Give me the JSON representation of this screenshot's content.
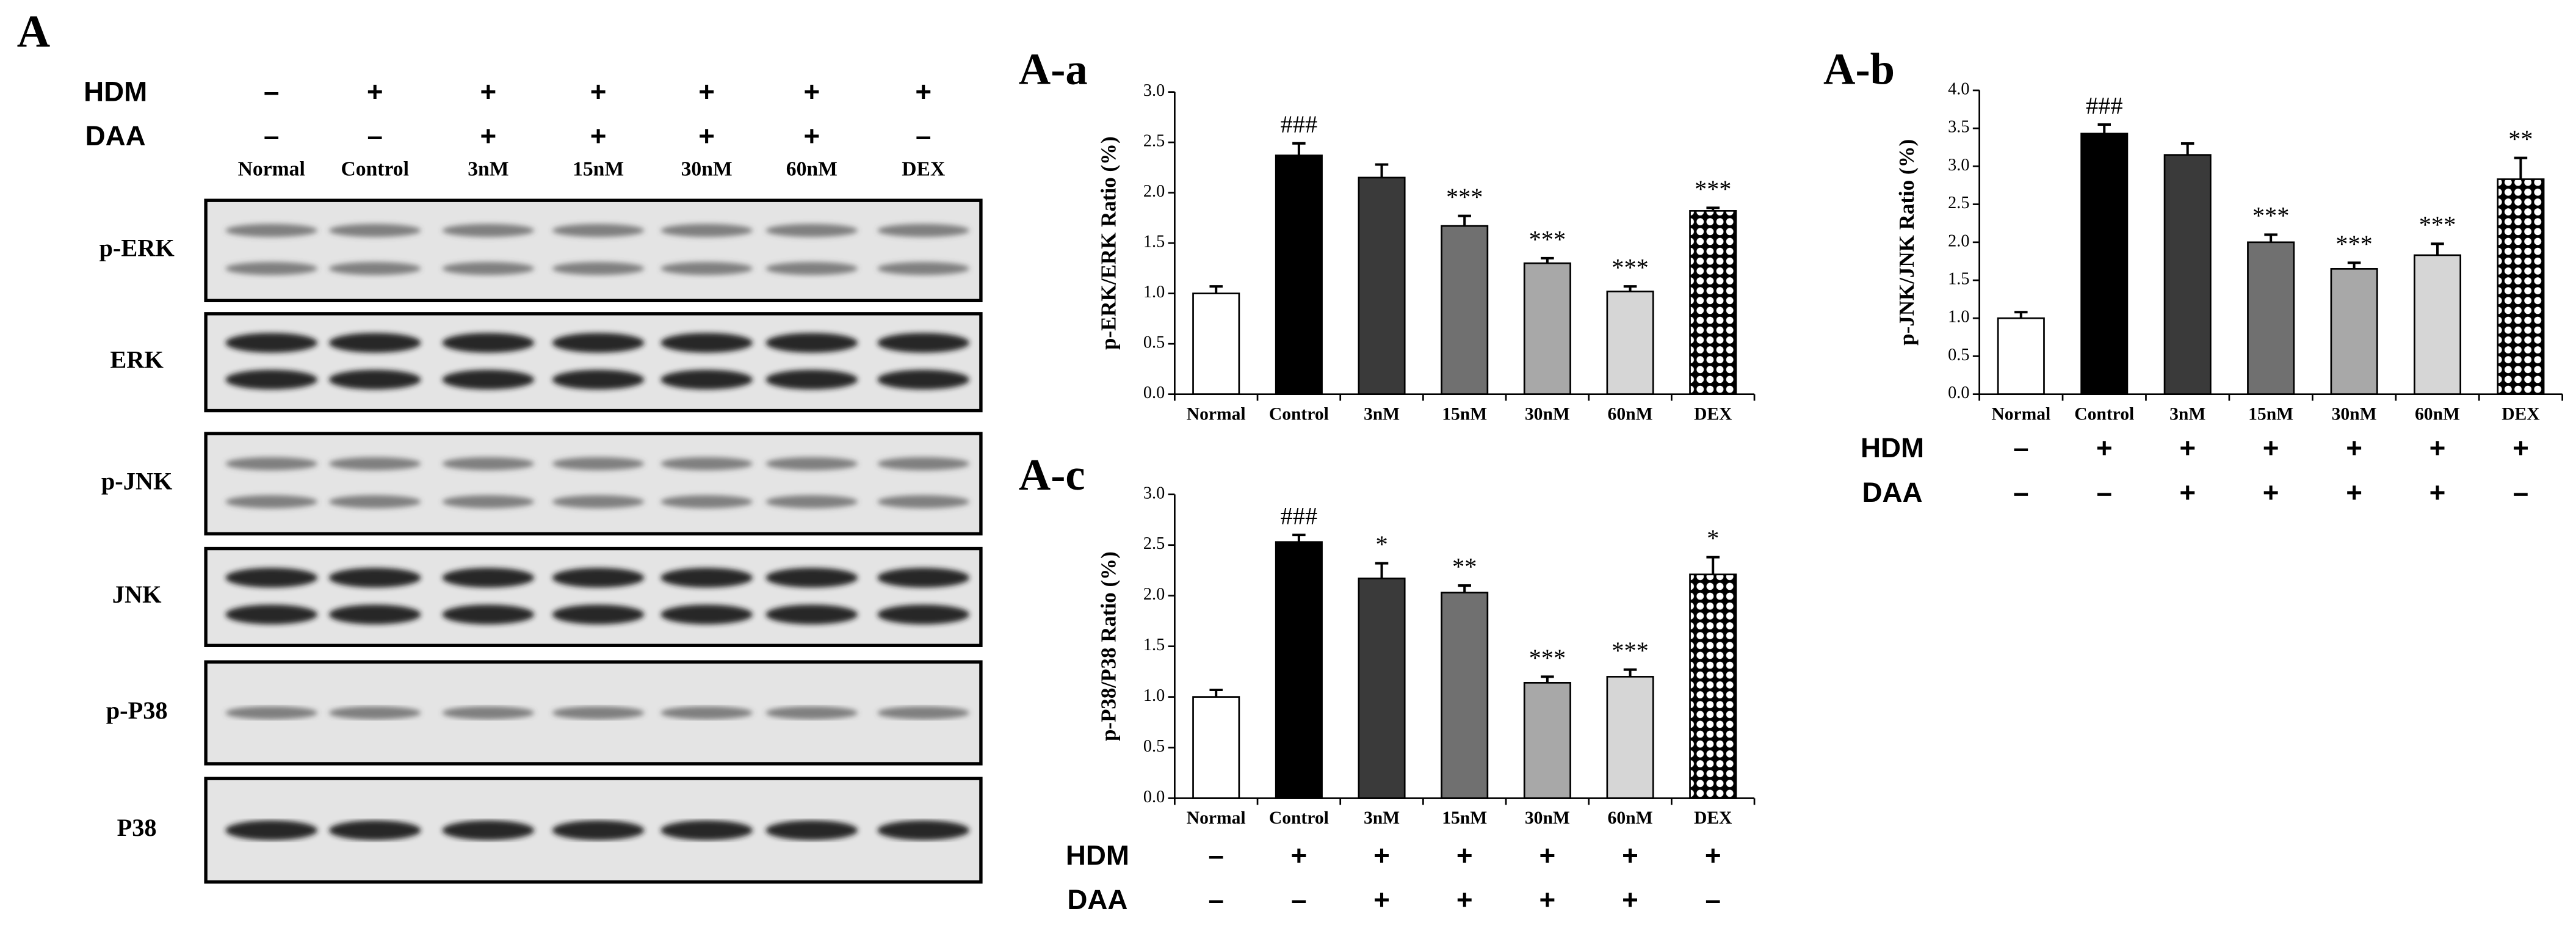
{
  "panel_label": "A",
  "blot": {
    "conditions": [
      {
        "name": "HDM",
        "signs": [
          "–",
          "+",
          "+",
          "+",
          "+",
          "+",
          "+"
        ]
      },
      {
        "name": "DAA",
        "signs": [
          "–",
          "–",
          "+",
          "+",
          "+",
          "+",
          "–"
        ]
      }
    ],
    "lanes": [
      "Normal",
      "Control",
      "3nM",
      "15nM",
      "30nM",
      "60nM",
      "DEX"
    ],
    "proteins": [
      "p-ERK",
      "ERK",
      "p-JNK",
      "JNK",
      "p-P38",
      "P38"
    ]
  },
  "chart_data": [
    {
      "type": "bar",
      "title": "A-a",
      "ylabel": "p-ERK/ERK Ratio (%)",
      "categories": [
        "Normal",
        "Control",
        "3nM",
        "15nM",
        "30nM",
        "60nM",
        "DEX"
      ],
      "values": [
        1.0,
        2.37,
        2.15,
        1.67,
        1.3,
        1.02,
        1.82
      ],
      "errors": [
        0.07,
        0.12,
        0.13,
        0.1,
        0.05,
        0.05,
        0.03
      ],
      "annotations": [
        null,
        "###",
        null,
        "***",
        "***",
        "***",
        "***"
      ],
      "fills": [
        "#ffffff",
        "#000000",
        "#3a3a3a",
        "#707070",
        "#a8a8a8",
        "#d6d6d6",
        "checker"
      ],
      "ylim": [
        0,
        3
      ],
      "yticks": [
        {
          "value": 0,
          "label": "0.0"
        },
        {
          "value": 0.5,
          "label": "0.5"
        },
        {
          "value": 1,
          "label": "1.0"
        },
        {
          "value": 1.5,
          "label": "1.5"
        },
        {
          "value": 2,
          "label": "2.0"
        },
        {
          "value": 2.5,
          "label": "2.5"
        },
        {
          "value": 3,
          "label": "3.0"
        }
      ]
    },
    {
      "type": "bar",
      "title": "A-b",
      "ylabel": "p-JNK/JNK Ratio (%)",
      "categories": [
        "Normal",
        "Control",
        "3nM",
        "15nM",
        "30nM",
        "60nM",
        "DEX"
      ],
      "values": [
        1.0,
        3.43,
        3.15,
        2.0,
        1.65,
        1.83,
        2.83
      ],
      "errors": [
        0.08,
        0.12,
        0.15,
        0.1,
        0.08,
        0.15,
        0.28
      ],
      "annotations": [
        null,
        "###",
        null,
        "***",
        "***",
        "***",
        "**"
      ],
      "fills": [
        "#ffffff",
        "#000000",
        "#3a3a3a",
        "#707070",
        "#a8a8a8",
        "#d6d6d6",
        "checker"
      ],
      "ylim": [
        0,
        4
      ],
      "yticks": [
        {
          "value": 0,
          "label": "0.0"
        },
        {
          "value": 0.5,
          "label": "0.5"
        },
        {
          "value": 1,
          "label": "1.0"
        },
        {
          "value": 1.5,
          "label": "1.5"
        },
        {
          "value": 2,
          "label": "2.0"
        },
        {
          "value": 2.5,
          "label": "2.5"
        },
        {
          "value": 3,
          "label": "3.0"
        },
        {
          "value": 3.5,
          "label": "3.5"
        },
        {
          "value": 4,
          "label": "4.0"
        }
      ],
      "conditions": [
        {
          "name": "HDM",
          "signs": [
            "–",
            "+",
            "+",
            "+",
            "+",
            "+",
            "+"
          ]
        },
        {
          "name": "DAA",
          "signs": [
            "–",
            "–",
            "+",
            "+",
            "+",
            "+",
            "–"
          ]
        }
      ]
    },
    {
      "type": "bar",
      "title": "A-c",
      "ylabel": "p-P38/P38 Ratio (%)",
      "categories": [
        "Normal",
        "Control",
        "3nM",
        "15nM",
        "30nM",
        "60nM",
        "DEX"
      ],
      "values": [
        1.0,
        2.53,
        2.17,
        2.03,
        1.14,
        1.2,
        2.21
      ],
      "errors": [
        0.07,
        0.07,
        0.15,
        0.07,
        0.06,
        0.07,
        0.17
      ],
      "annotations": [
        null,
        "###",
        "*",
        "**",
        "***",
        "***",
        "*"
      ],
      "fills": [
        "#ffffff",
        "#000000",
        "#3a3a3a",
        "#707070",
        "#a8a8a8",
        "#d6d6d6",
        "checker"
      ],
      "ylim": [
        0,
        3
      ],
      "yticks": [
        {
          "value": 0,
          "label": "0.0"
        },
        {
          "value": 0.5,
          "label": "0.5"
        },
        {
          "value": 1,
          "label": "1.0"
        },
        {
          "value": 1.5,
          "label": "1.5"
        },
        {
          "value": 2,
          "label": "2.0"
        },
        {
          "value": 2.5,
          "label": "2.5"
        },
        {
          "value": 3,
          "label": "3.0"
        }
      ],
      "conditions": [
        {
          "name": "HDM",
          "signs": [
            "–",
            "+",
            "+",
            "+",
            "+",
            "+",
            "+"
          ]
        },
        {
          "name": "DAA",
          "signs": [
            "–",
            "–",
            "+",
            "+",
            "+",
            "+",
            "–"
          ]
        }
      ]
    }
  ]
}
